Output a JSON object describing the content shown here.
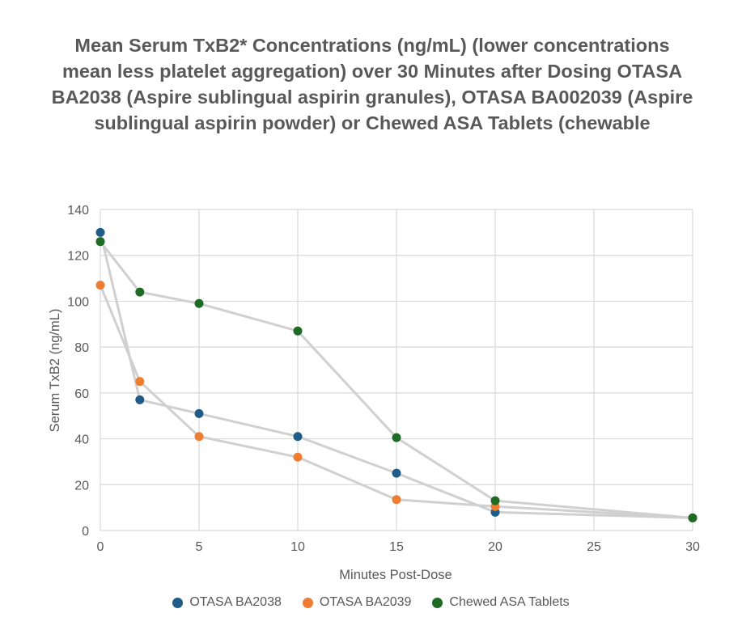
{
  "chart_data": {
    "type": "line",
    "title": "Mean Serum TxB2* Concentrations (ng/mL) (lower concentrations mean less platelet aggregation) over 30 Minutes after Dosing OTASA BA2038 (Aspire sublingual aspirin granules), OTASA BA002039 (Aspire sublingual aspirin powder) or Chewed ASA Tablets (chewable",
    "xlabel": "Minutes Post-Dose",
    "ylabel": "Serum TxB2 (ng/mL)",
    "xlim": [
      0,
      30
    ],
    "ylim": [
      0,
      140
    ],
    "xticks": [
      0,
      5,
      10,
      15,
      20,
      25,
      30
    ],
    "yticks": [
      0,
      20,
      40,
      60,
      80,
      100,
      120,
      140
    ],
    "grid": true,
    "legend_position": "bottom",
    "line_color": "#d0d0d0",
    "series": [
      {
        "name": "OTASA BA2038",
        "color": "#1f5c87",
        "x": [
          0,
          2,
          5,
          10,
          15,
          20,
          30
        ],
        "y": [
          130,
          57,
          51,
          41,
          25,
          8,
          5.5
        ]
      },
      {
        "name": "OTASA BA2039",
        "color": "#ed7d31",
        "x": [
          0,
          2,
          5,
          10,
          15,
          20,
          30
        ],
        "y": [
          107,
          65,
          41,
          32,
          13.5,
          10.5,
          5.5
        ]
      },
      {
        "name": "Chewed ASA Tablets",
        "color": "#1e6b25",
        "x": [
          0,
          2,
          5,
          10,
          15,
          20,
          30
        ],
        "y": [
          126,
          104,
          99,
          87,
          40.5,
          13,
          5.5
        ]
      }
    ]
  }
}
